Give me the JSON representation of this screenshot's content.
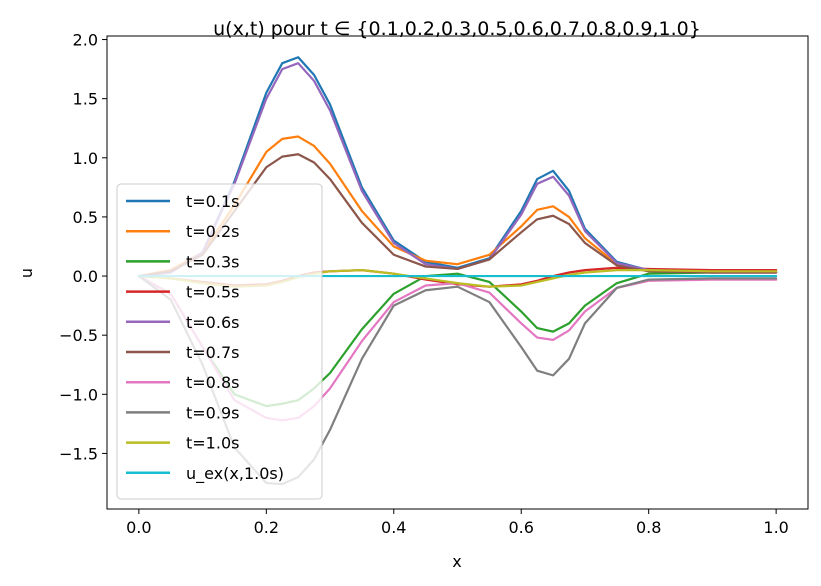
{
  "chart_data": {
    "type": "line",
    "title": "u(x,t) pour t ∈ {0.1,0.2,0.3,0.5,0.6,0.7,0.8,0.9,1.0}",
    "xlabel": "x",
    "ylabel": "u",
    "xlim": [
      -0.05,
      1.05
    ],
    "ylim": [
      -1.97,
      2.03
    ],
    "xticks": [
      0.0,
      0.2,
      0.4,
      0.6,
      0.8,
      1.0
    ],
    "xtick_labels": [
      "0.0",
      "0.2",
      "0.4",
      "0.6",
      "0.8",
      "1.0"
    ],
    "yticks": [
      -1.5,
      -1.0,
      -0.5,
      0.0,
      0.5,
      1.0,
      1.5,
      2.0
    ],
    "ytick_labels": [
      "−1.5",
      "−1.0",
      "−0.5",
      "0.0",
      "0.5",
      "1.0",
      "1.5",
      "2.0"
    ],
    "grid": false,
    "legend_position": "lower-left",
    "x": [
      0.0,
      0.05,
      0.1,
      0.15,
      0.2,
      0.225,
      0.25,
      0.275,
      0.3,
      0.35,
      0.4,
      0.45,
      0.5,
      0.55,
      0.6,
      0.625,
      0.65,
      0.675,
      0.7,
      0.75,
      0.8,
      0.9,
      1.0
    ],
    "series": [
      {
        "name": "t=0.1s",
        "color": "#1f77b4",
        "values": [
          0.0,
          0.03,
          0.2,
          0.8,
          1.55,
          1.8,
          1.85,
          1.7,
          1.45,
          0.75,
          0.3,
          0.12,
          0.07,
          0.15,
          0.55,
          0.82,
          0.89,
          0.72,
          0.4,
          0.12,
          0.05,
          0.03,
          0.03
        ]
      },
      {
        "name": "t=0.2s",
        "color": "#ff7f0e",
        "values": [
          0.0,
          0.05,
          0.2,
          0.6,
          1.05,
          1.16,
          1.18,
          1.1,
          0.95,
          0.55,
          0.25,
          0.13,
          0.1,
          0.18,
          0.42,
          0.56,
          0.59,
          0.5,
          0.32,
          0.1,
          0.04,
          0.03,
          0.03
        ]
      },
      {
        "name": "t=0.3s",
        "color": "#2ca02c",
        "values": [
          0.0,
          -0.15,
          -0.6,
          -1.0,
          -1.1,
          -1.08,
          -1.05,
          -0.95,
          -0.82,
          -0.45,
          -0.15,
          0.0,
          0.02,
          -0.05,
          -0.3,
          -0.44,
          -0.47,
          -0.4,
          -0.25,
          -0.06,
          0.02,
          0.03,
          0.04
        ]
      },
      {
        "name": "t=0.5s",
        "color": "#d62728",
        "values": [
          0.0,
          -0.02,
          -0.05,
          -0.08,
          -0.07,
          -0.04,
          0.0,
          0.03,
          0.04,
          0.05,
          0.02,
          -0.03,
          -0.07,
          -0.09,
          -0.07,
          -0.04,
          0.0,
          0.03,
          0.05,
          0.07,
          0.06,
          0.05,
          0.05
        ]
      },
      {
        "name": "t=0.6s",
        "color": "#9467bd",
        "values": [
          0.0,
          0.03,
          0.2,
          0.78,
          1.5,
          1.75,
          1.8,
          1.65,
          1.4,
          0.72,
          0.28,
          0.1,
          0.06,
          0.14,
          0.52,
          0.78,
          0.84,
          0.68,
          0.38,
          0.11,
          0.05,
          0.03,
          0.03
        ]
      },
      {
        "name": "t=0.7s",
        "color": "#8c564b",
        "values": [
          0.0,
          0.04,
          0.18,
          0.55,
          0.92,
          1.01,
          1.03,
          0.96,
          0.82,
          0.45,
          0.18,
          0.08,
          0.06,
          0.14,
          0.37,
          0.48,
          0.51,
          0.44,
          0.28,
          0.09,
          0.04,
          0.03,
          0.03
        ]
      },
      {
        "name": "t=0.8s",
        "color": "#e377c2",
        "values": [
          0.0,
          -0.15,
          -0.6,
          -1.05,
          -1.2,
          -1.22,
          -1.2,
          -1.1,
          -0.95,
          -0.55,
          -0.22,
          -0.08,
          -0.06,
          -0.14,
          -0.4,
          -0.52,
          -0.54,
          -0.46,
          -0.3,
          -0.1,
          -0.04,
          -0.03,
          -0.03
        ]
      },
      {
        "name": "t=0.9s",
        "color": "#7f7f7f",
        "values": [
          0.0,
          -0.2,
          -0.75,
          -1.45,
          -1.75,
          -1.76,
          -1.7,
          -1.55,
          -1.3,
          -0.7,
          -0.25,
          -0.12,
          -0.09,
          -0.22,
          -0.6,
          -0.8,
          -0.84,
          -0.7,
          -0.4,
          -0.1,
          -0.03,
          -0.02,
          -0.02
        ]
      },
      {
        "name": "t=1.0s",
        "color": "#bcbd22",
        "values": [
          0.0,
          -0.02,
          -0.06,
          -0.09,
          -0.08,
          -0.05,
          -0.01,
          0.02,
          0.04,
          0.05,
          0.02,
          -0.02,
          -0.06,
          -0.09,
          -0.08,
          -0.05,
          -0.02,
          0.01,
          0.03,
          0.05,
          0.05,
          0.04,
          0.04
        ]
      },
      {
        "name": "u_ex(x,1.0s)",
        "color": "#17becf",
        "values": [
          0.0,
          0.0,
          0.0,
          0.0,
          0.0,
          0.0,
          0.0,
          0.0,
          0.0,
          0.0,
          0.0,
          0.0,
          0.0,
          0.0,
          0.0,
          0.0,
          0.0,
          0.0,
          0.0,
          0.0,
          0.0,
          0.0,
          0.0
        ]
      }
    ]
  }
}
